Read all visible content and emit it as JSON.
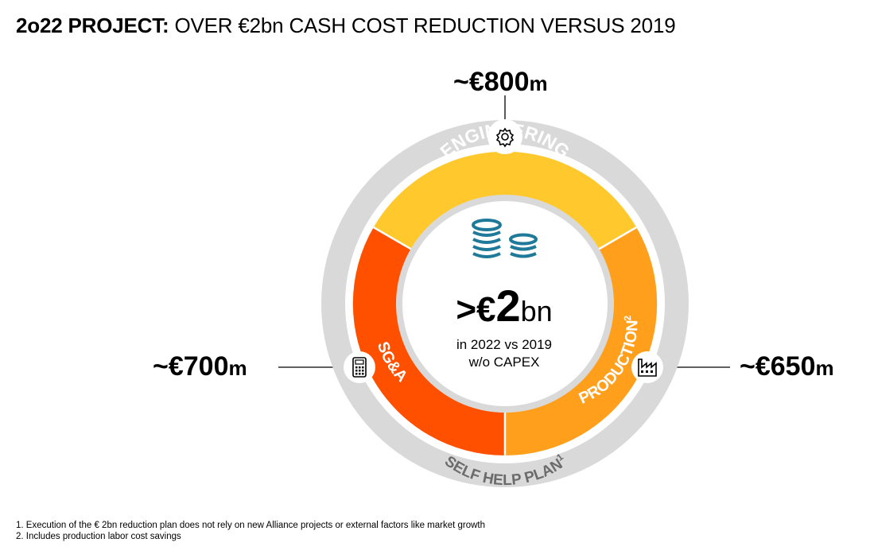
{
  "title": {
    "bold": "2o22 PROJECT:",
    "rest": " OVER €2bn CASH COST REDUCTION VERSUS 2019"
  },
  "segments": {
    "engineering": {
      "label": "ENGINEERING",
      "value": "~€800",
      "unit": "m",
      "icon": "gear-icon",
      "color": "#FFC92E"
    },
    "production": {
      "label": "PRODUCTION",
      "superscript": "2",
      "value": "~€650",
      "unit": "m",
      "icon": "factory-icon",
      "color": "#FF9F1C"
    },
    "sga": {
      "label": "SG&A",
      "value": "~€700",
      "unit": "m",
      "icon": "calculator-icon",
      "color": "#FF5000"
    }
  },
  "outer_ring": {
    "label": "SELF HELP PLAN",
    "superscript": "1",
    "color": "#D9D9D9"
  },
  "center": {
    "gt": ">€",
    "num": "2",
    "unit": "bn",
    "line1": "in 2022 vs 2019",
    "line2": "w/o CAPEX",
    "icon": "coins-icon",
    "icon_color": "#1F7A99"
  },
  "footnotes": [
    "1. Execution of the € 2bn reduction plan does not rely on new Alliance projects or external factors like market growth",
    "2. Includes production labor cost savings"
  ]
}
